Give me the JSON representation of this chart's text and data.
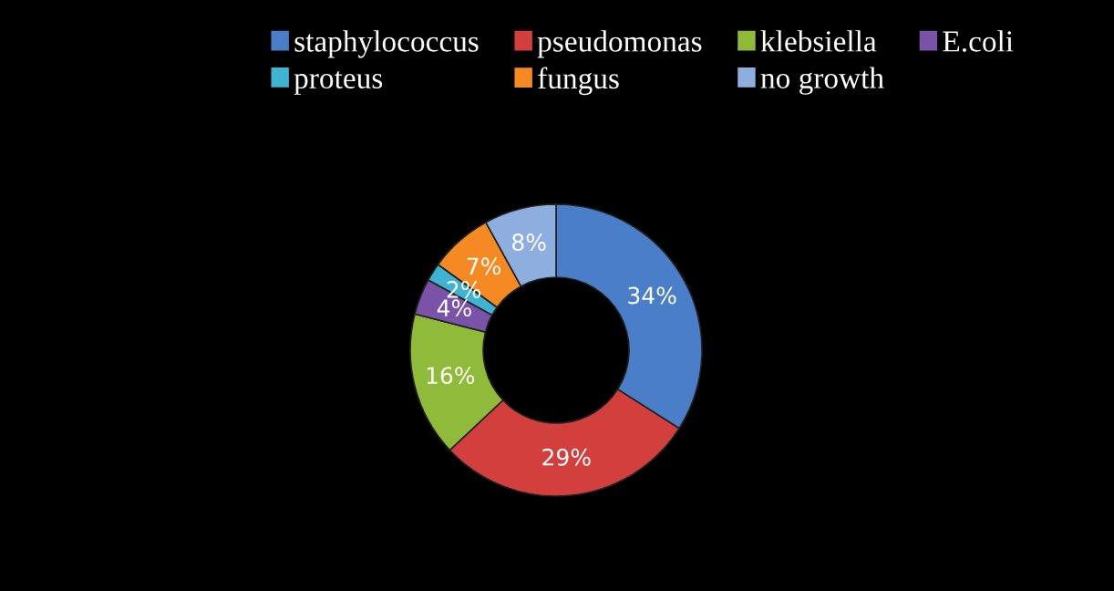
{
  "chart_data": {
    "type": "donut",
    "categories": [
      "staphylococcus",
      "pseudomonas",
      "klebsiella",
      "E.coli",
      "proteus",
      "fungus",
      "no growth"
    ],
    "values": [
      34,
      29,
      16,
      4,
      2,
      7,
      8
    ],
    "colors": [
      "#4a7ec8",
      "#d23f3c",
      "#8fba3a",
      "#7a52a8",
      "#3fb4d2",
      "#f58a24",
      "#8eaee0"
    ],
    "value_labels": [
      "34%",
      "29%",
      "16%",
      "4%",
      "2%",
      "7%",
      "8%"
    ],
    "legend": "top"
  }
}
